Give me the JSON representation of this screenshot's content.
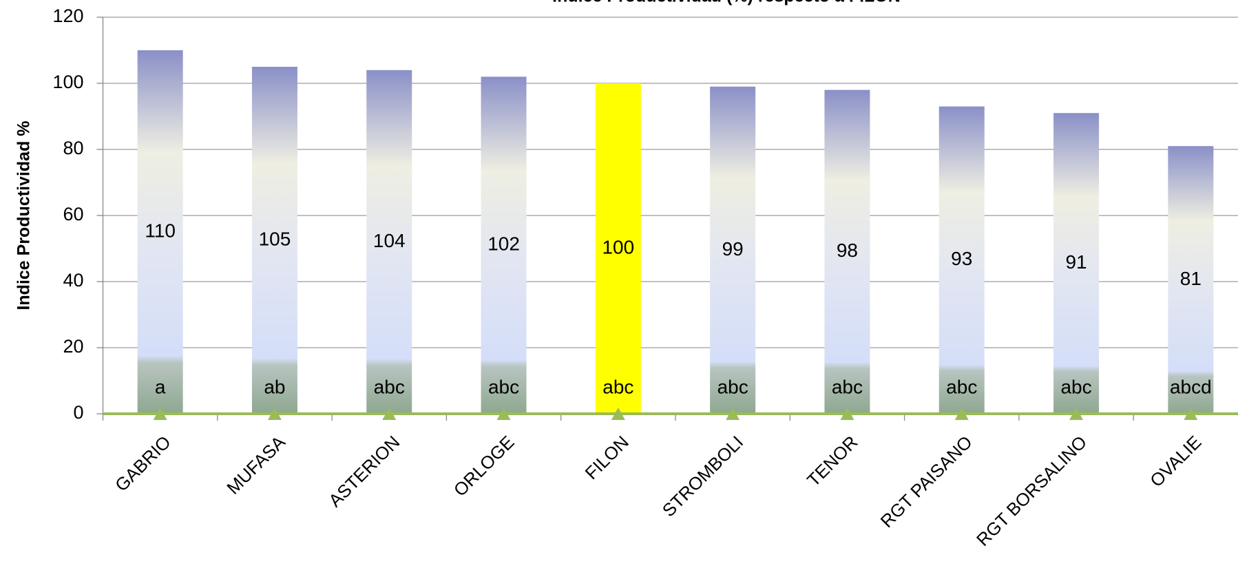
{
  "chart_data": {
    "type": "bar",
    "title": "Indice Productividad (%) respecto a FILON",
    "y_label": "Indice Productividad %",
    "categories": [
      "GABRIO",
      "MUFASA",
      "ASTERION",
      "ORLOGE",
      "FILON",
      "STROMBOLI",
      "TENOR",
      "RGT PAISANO",
      "RGT BORSALINO",
      "OVALIE"
    ],
    "values": [
      110,
      105,
      104,
      102,
      100,
      99,
      98,
      93,
      91,
      81
    ],
    "fills": [
      "gradient",
      "gradient",
      "gradient",
      "gradient",
      "#ffff00",
      "gradient",
      "gradient",
      "gradient",
      "gradient",
      "gradient"
    ],
    "letters": [
      "a",
      "ab",
      "abc",
      "abc",
      "abc",
      "abc",
      "abc",
      "abc",
      "abc",
      "abcd"
    ],
    "line_series": {
      "color": "#9bbb59",
      "values": [
        0,
        0,
        0,
        0,
        0,
        0,
        0,
        0,
        0,
        0
      ]
    },
    "ylim": [
      0,
      120
    ],
    "yticks": [
      0,
      20,
      40,
      60,
      80,
      100,
      120
    ],
    "grid": true
  }
}
